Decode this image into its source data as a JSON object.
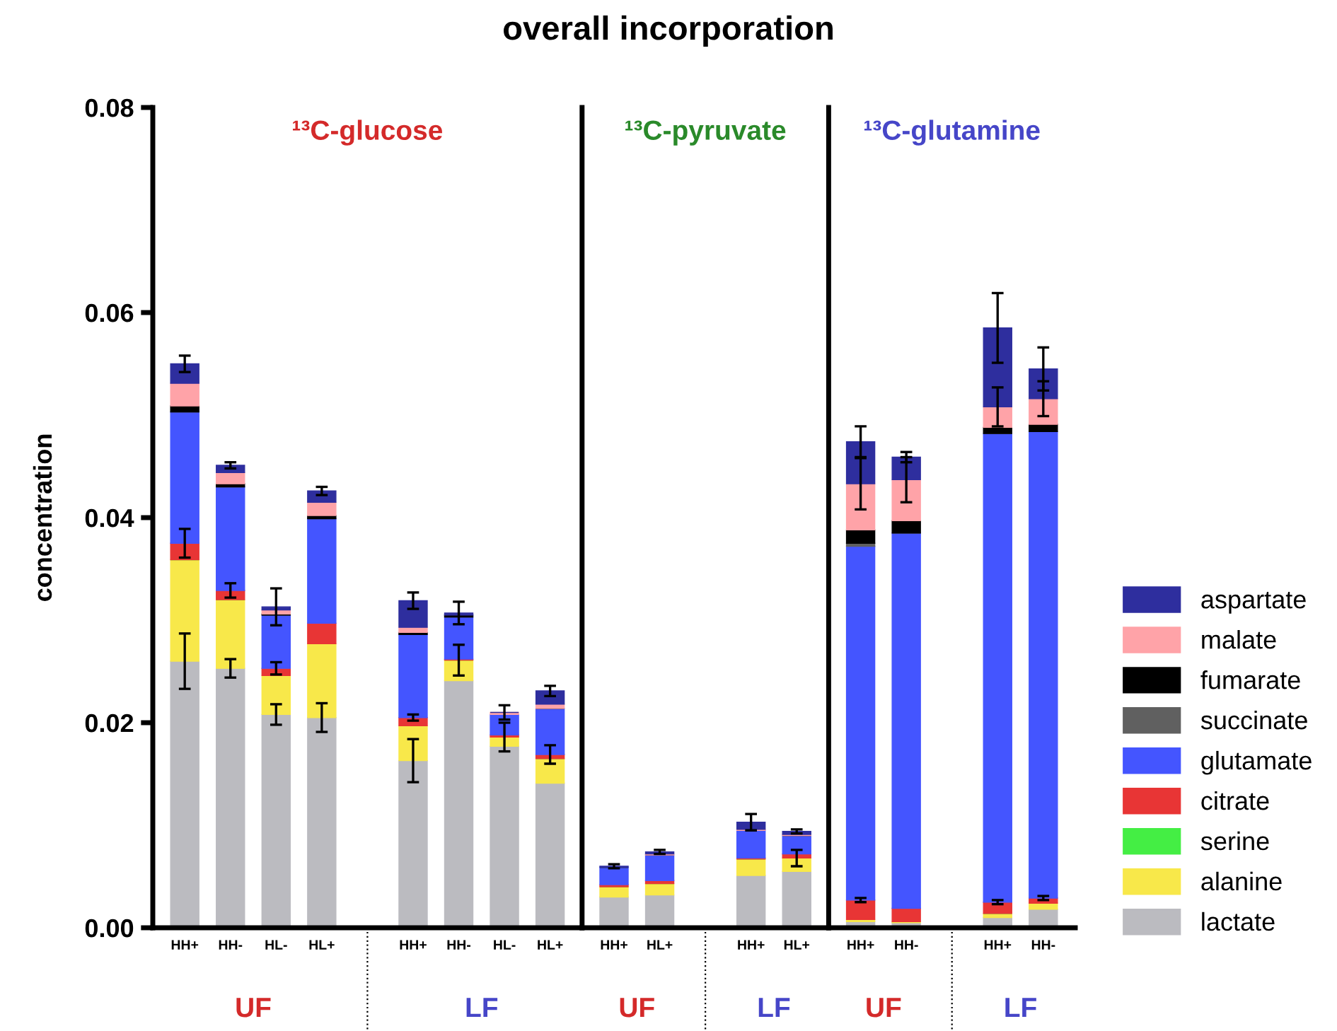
{
  "chart_data": [
    {
      "type": "bar",
      "stacked": true,
      "title": "overall incorporation",
      "subtitle": "¹³C-glucose",
      "ylabel": "concentration",
      "categories": [
        "HH+",
        "HH-",
        "HL-",
        "HL+",
        null,
        "HH+",
        "HH-",
        "HL-",
        "HL+"
      ],
      "ylim": [
        0,
        0.08
      ],
      "yticks": [
        {
          "value": 0,
          "label": "0.00"
        },
        {
          "value": 0.02,
          "label": "0.02"
        },
        {
          "value": 0.04,
          "label": "0.04"
        },
        {
          "value": 0.06,
          "label": "0.06"
        },
        {
          "value": 0.08,
          "label": "0.08"
        }
      ],
      "annotations": [
        "UF",
        "LF"
      ],
      "legend": "right",
      "series": [
        {
          "name": "lactate",
          "color": "#bbbbc0",
          "values": [
            0.026,
            0.0253,
            0.0208,
            0.0205,
            null,
            0.0163,
            0.0241,
            0.0177,
            0.0141
          ],
          "errors": [
            0.0027,
            0.0009,
            0.001,
            0.0014,
            null,
            0.0021,
            null,
            null,
            null
          ]
        },
        {
          "name": "alanine",
          "color": "#f8e84a",
          "values": [
            0.0099,
            0.0067,
            0.0038,
            0.0072,
            null,
            0.0034,
            0.002,
            0.0009,
            0.0024
          ],
          "errors": [
            null,
            null,
            null,
            null,
            null,
            null,
            0.0015,
            0.0014,
            null
          ]
        },
        {
          "name": "serine",
          "color": "#44ee44",
          "values": [
            0,
            0,
            0,
            0,
            null,
            0,
            0,
            0,
            0
          ]
        },
        {
          "name": "citrate",
          "color": "#e83535",
          "values": [
            0.0016,
            0.0009,
            0.0007,
            0.002,
            null,
            0.0008,
            0.0001,
            0.0002,
            0.0004
          ],
          "errors": [
            0.0014,
            0.0007,
            0.0006,
            null,
            null,
            0.0003,
            null,
            null,
            0.0009
          ]
        },
        {
          "name": "glutamate",
          "color": "#4455ff",
          "values": [
            0.0128,
            0.0101,
            0.0052,
            0.0102,
            null,
            0.0081,
            0.0041,
            0.002,
            0.0045
          ]
        },
        {
          "name": "succinate",
          "color": "#606060",
          "values": [
            0,
            0,
            0,
            0,
            null,
            0,
            0,
            0,
            0
          ]
        },
        {
          "name": "fumarate",
          "color": "#000000",
          "values": [
            0.0006,
            0.0003,
            0.0001,
            0.0003,
            null,
            0.0002,
            0.0002,
            0,
            0
          ]
        },
        {
          "name": "malate",
          "color": "#ffa3a8",
          "values": [
            0.0022,
            0.0011,
            0.0004,
            0.0013,
            null,
            0.0005,
            null,
            0.0002,
            0.0004
          ],
          "errors": [
            null,
            null,
            null,
            null,
            null,
            null,
            null,
            0.0007,
            null
          ]
        },
        {
          "name": "aspartate",
          "color": "#2e2e9e",
          "values": [
            0.0019,
            0.0007,
            0.0003,
            0.0011,
            null,
            0.0026,
            0.0002,
            0,
            0.0013
          ],
          "errors": [
            0.0008,
            0.0003,
            0.0018,
            0.0004,
            null,
            0.0008,
            0.0011,
            null,
            0.0005
          ]
        }
      ]
    },
    {
      "type": "bar",
      "stacked": true,
      "subtitle": "¹³C-pyruvate",
      "tick_labels": "x",
      "categories": [
        "HH+",
        "HL+",
        null,
        "HH+",
        "HL+"
      ],
      "ylim": [
        0,
        0.08
      ],
      "annotations": [
        "UF",
        "LF"
      ],
      "series": [
        {
          "color": "#bbbbc0",
          "values": [
            0.003,
            0.0032,
            null,
            0.0051,
            0.0055
          ]
        },
        {
          "color": "#f8e84a",
          "values": [
            0.001,
            0.0011,
            null,
            0.0016,
            0.0013
          ],
          "errors": [
            null,
            null,
            null,
            null,
            0.0008
          ]
        },
        {
          "color": "#44ee44",
          "values": [
            0,
            0,
            null,
            0,
            0
          ]
        },
        {
          "color": "#e83535",
          "values": [
            0.0002,
            0.0003,
            null,
            0.0001,
            0.0004
          ]
        },
        {
          "color": "#4455ff",
          "values": [
            0.0017,
            0.0025,
            null,
            0.0027,
            0.0018
          ]
        },
        {
          "color": "#606060",
          "values": [
            0,
            0,
            null,
            0,
            0
          ]
        },
        {
          "color": "#000000",
          "values": [
            0,
            0,
            null,
            0,
            0
          ]
        },
        {
          "color": "#ffa3a8",
          "values": [
            null,
            0.0001,
            null,
            0.0001,
            0.0001
          ]
        },
        {
          "color": "#2e2e9e",
          "values": [
            0.0001,
            0.0002,
            null,
            0.0007,
            0.0003
          ],
          "errors": [
            0.0002,
            0.0002,
            null,
            0.0008,
            0.0002
          ]
        }
      ]
    },
    {
      "type": "bar",
      "stacked": true,
      "subtitle": "¹³C-glutamine",
      "tick_labels": "x",
      "categories": [
        "HH+",
        "HH-",
        null,
        "HH+",
        "HH-"
      ],
      "ylim": [
        0,
        0.08
      ],
      "annotations": [
        "UF",
        "LF"
      ],
      "series": [
        {
          "color": "#bbbbc0",
          "values": [
            0.0006,
            0.0005,
            null,
            0.001,
            0.0018
          ]
        },
        {
          "color": "#f8e84a",
          "values": [
            0.0002,
            0.0001,
            null,
            0.0004,
            0.0006
          ]
        },
        {
          "color": "#44ee44",
          "values": [
            0,
            0,
            null,
            0,
            0
          ]
        },
        {
          "color": "#e83535",
          "values": [
            0.0019,
            0.0013,
            null,
            0.0011,
            0.0005
          ],
          "errors": [
            0.0002,
            null,
            null,
            0.0002,
            0.0002
          ]
        },
        {
          "color": "#4455ff",
          "values": [
            0.0345,
            0.0366,
            null,
            0.0457,
            0.0455
          ]
        },
        {
          "color": "#606060",
          "values": [
            0.0003,
            0,
            null,
            0,
            0
          ]
        },
        {
          "color": "#000000",
          "values": [
            0.0013,
            0.0012,
            null,
            0.0006,
            0.0007
          ]
        },
        {
          "color": "#ffa3a8",
          "values": [
            0.0045,
            0.004,
            null,
            0.002,
            0.0025
          ],
          "errors": [
            0.0025,
            0.0022,
            null,
            0.0019,
            0.0017
          ]
        },
        {
          "color": "#2e2e9e",
          "values": [
            0.0041,
            0.0022,
            null,
            0.0077,
            0.0029
          ],
          "errors": [
            0.0015,
            0.0005,
            null,
            0.0034,
            0.0021
          ]
        }
      ]
    }
  ]
}
